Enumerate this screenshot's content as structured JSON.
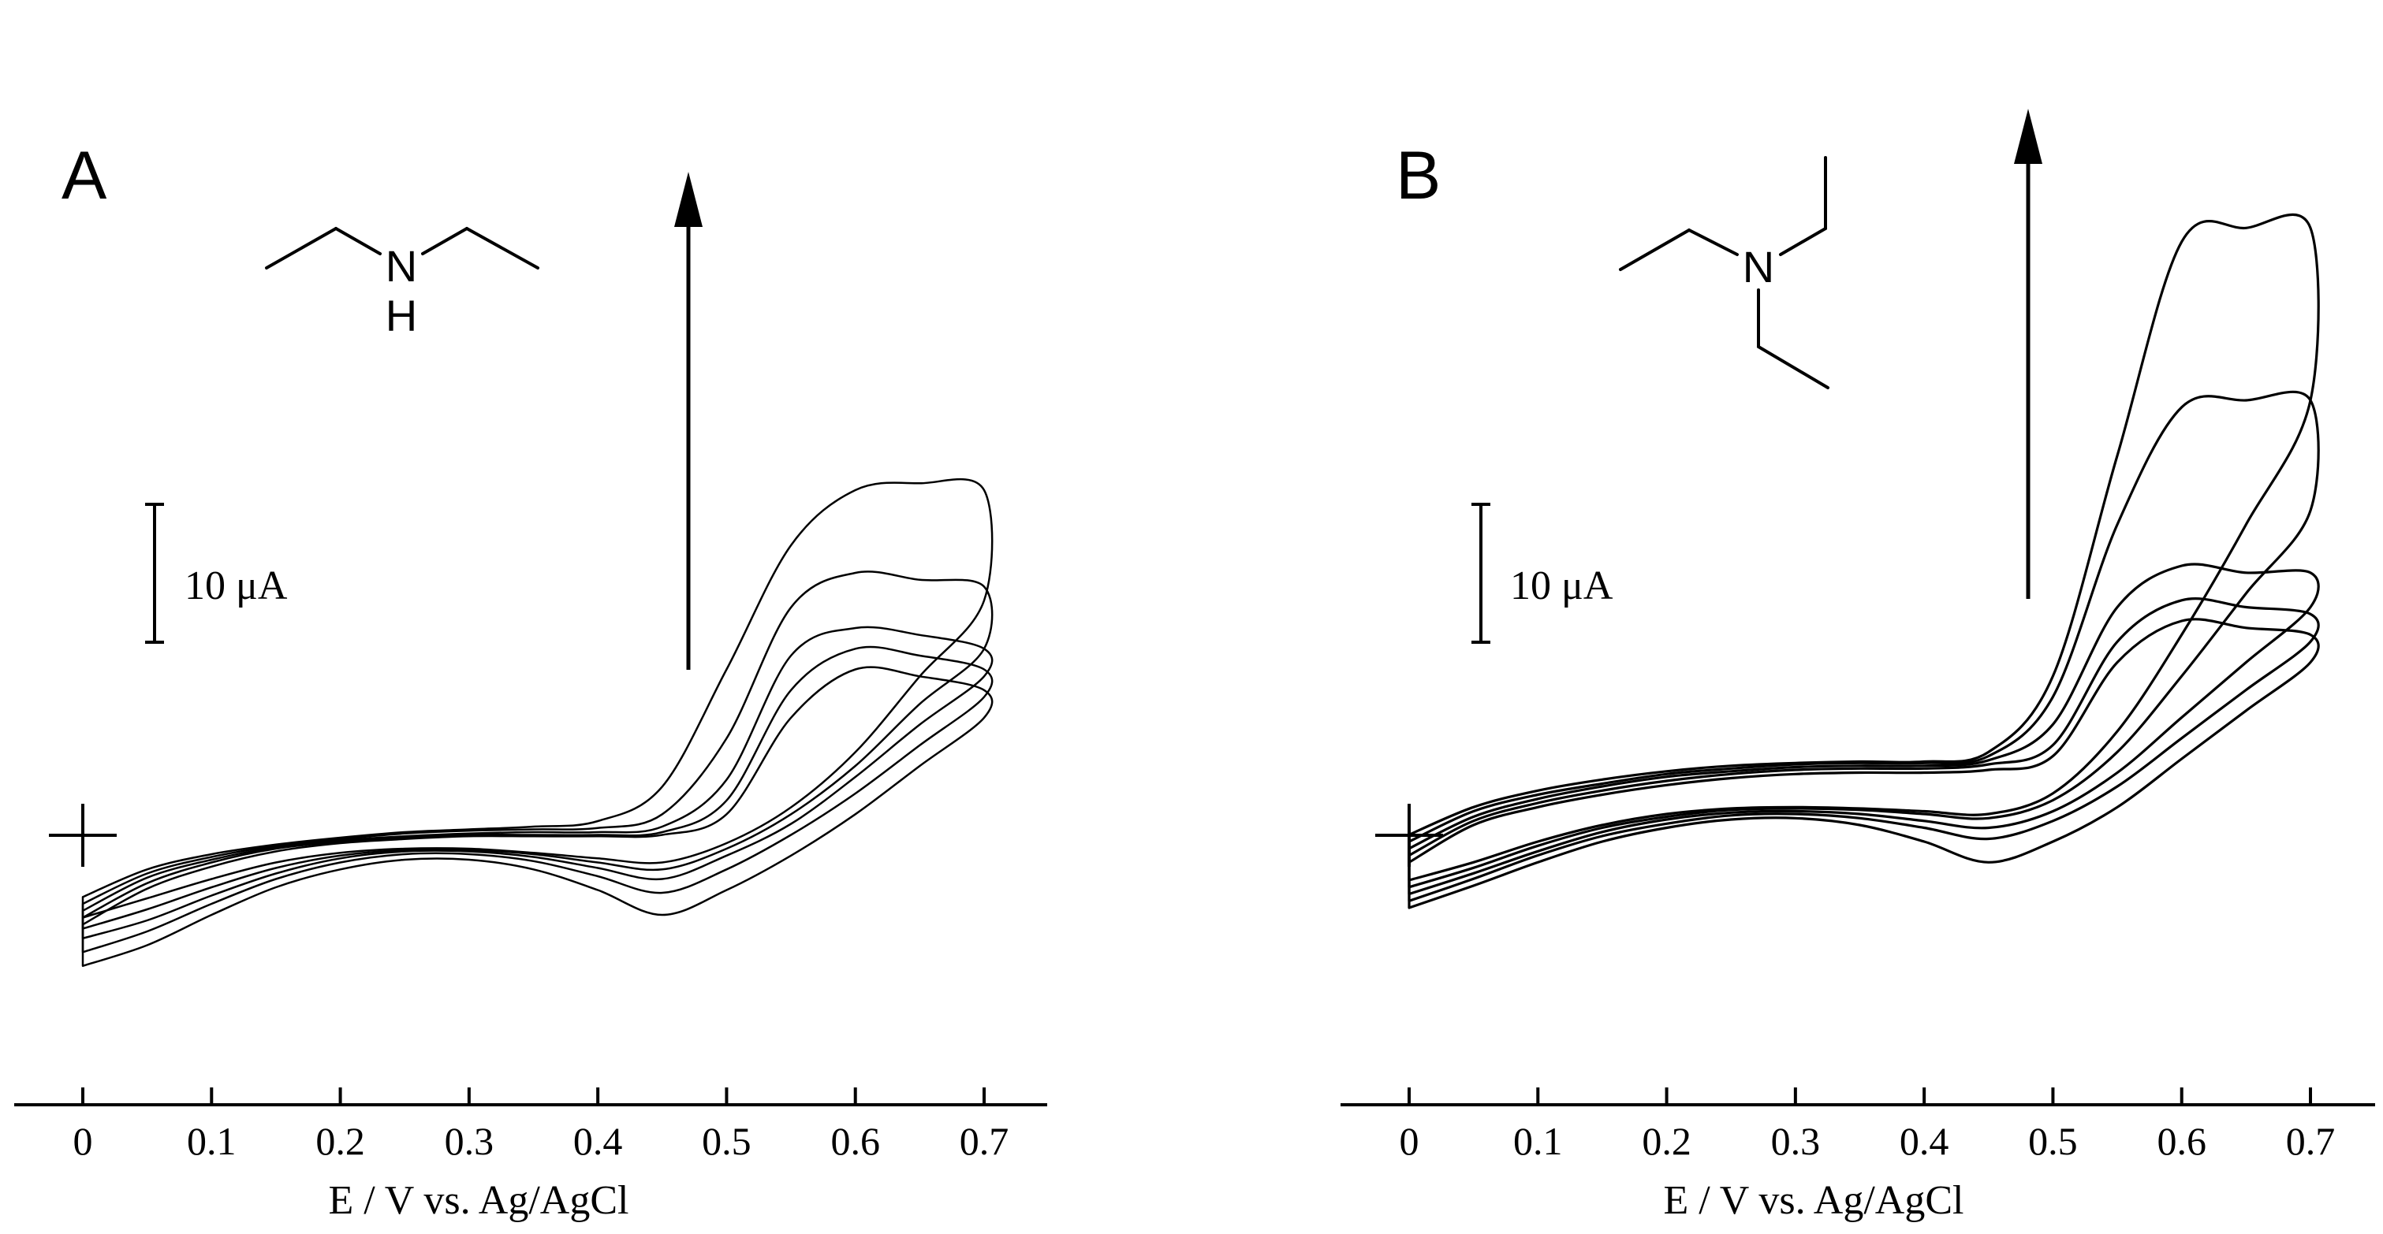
{
  "chart_data": [
    {
      "type": "line",
      "panel_label": "A",
      "molecule": {
        "atom_label": "N",
        "h_label": "H"
      },
      "xlabel": "E / V  vs.  Ag/AgCl",
      "xticks": [
        "0",
        "0.1",
        "0.2",
        "0.3",
        "0.4",
        "0.5",
        "0.6",
        "0.7"
      ],
      "xlim": [
        0,
        0.7
      ],
      "scale_bar_label": "10 μA",
      "scale_bar_uA": 10,
      "ylim_uA": [
        -8,
        40
      ],
      "grid": false,
      "legend": "none",
      "series": [
        {
          "upper_x": [
            0,
            0.05,
            0.1,
            0.15,
            0.2,
            0.25,
            0.3,
            0.35,
            0.4,
            0.45,
            0.5,
            0.55,
            0.6,
            0.65,
            0.7
          ],
          "upper_y": [
            -3.5,
            -1.5,
            -0.4,
            0.3,
            0.8,
            1.2,
            1.4,
            1.6,
            2.0,
            4.5,
            13.0,
            22.0,
            26.0,
            26.5,
            26.0
          ],
          "lower_x": [
            0.7,
            0.65,
            0.6,
            0.55,
            0.5,
            0.45,
            0.4,
            0.35,
            0.3,
            0.25,
            0.2,
            0.15,
            0.1,
            0.05,
            0
          ],
          "lower_y": [
            18.0,
            12.5,
            7.0,
            3.0,
            0.4,
            -1.0,
            -0.7,
            -0.3,
            0.0,
            0.0,
            -0.3,
            -1.0,
            -2.2,
            -3.6,
            -5.0
          ]
        },
        {
          "upper_x": [
            0,
            0.05,
            0.1,
            0.15,
            0.2,
            0.25,
            0.3,
            0.35,
            0.4,
            0.45,
            0.5,
            0.55,
            0.6,
            0.65,
            0.7
          ],
          "upper_y": [
            -4.0,
            -1.8,
            -0.6,
            0.2,
            0.7,
            1.1,
            1.3,
            1.4,
            1.5,
            2.5,
            8.0,
            17.5,
            20.0,
            19.5,
            19.0
          ],
          "lower_x": [
            0.7,
            0.65,
            0.6,
            0.55,
            0.5,
            0.45,
            0.4,
            0.35,
            0.3,
            0.25,
            0.2,
            0.15,
            0.1,
            0.05,
            0
          ],
          "lower_y": [
            14.5,
            10.5,
            6.0,
            2.5,
            0.0,
            -1.5,
            -1.0,
            -0.4,
            -0.1,
            -0.1,
            -0.5,
            -1.4,
            -2.8,
            -4.4,
            -5.8
          ]
        },
        {
          "upper_x": [
            0,
            0.05,
            0.1,
            0.15,
            0.2,
            0.25,
            0.3,
            0.35,
            0.4,
            0.45,
            0.5,
            0.55,
            0.6,
            0.65,
            0.7
          ],
          "upper_y": [
            -4.5,
            -2.1,
            -0.8,
            0.1,
            0.6,
            0.9,
            1.1,
            1.2,
            1.2,
            1.6,
            5.0,
            14.0,
            16.0,
            15.5,
            14.5
          ],
          "lower_x": [
            0.7,
            0.65,
            0.6,
            0.55,
            0.5,
            0.45,
            0.4,
            0.35,
            0.3,
            0.25,
            0.2,
            0.15,
            0.1,
            0.05,
            0
          ],
          "lower_y": [
            12.5,
            9.0,
            5.2,
            1.8,
            -0.5,
            -2.2,
            -1.4,
            -0.6,
            -0.2,
            -0.2,
            -0.7,
            -1.8,
            -3.4,
            -5.2,
            -6.5
          ]
        },
        {
          "upper_x": [
            0,
            0.05,
            0.1,
            0.15,
            0.2,
            0.25,
            0.3,
            0.35,
            0.4,
            0.45,
            0.5,
            0.55,
            0.6,
            0.65,
            0.7
          ],
          "upper_y": [
            -5.0,
            -2.5,
            -1.0,
            0.0,
            0.5,
            0.8,
            1.0,
            1.0,
            1.0,
            1.2,
            3.5,
            11.5,
            14.5,
            14.0,
            13.0
          ],
          "lower_x": [
            0.7,
            0.65,
            0.6,
            0.55,
            0.5,
            0.45,
            0.4,
            0.35,
            0.3,
            0.25,
            0.2,
            0.15,
            0.1,
            0.05,
            0
          ],
          "lower_y": [
            11.0,
            7.5,
            4.0,
            1.0,
            -1.5,
            -3.2,
            -2.0,
            -0.9,
            -0.4,
            -0.4,
            -1.0,
            -2.2,
            -4.0,
            -6.0,
            -7.5
          ]
        },
        {
          "upper_x": [
            0,
            0.05,
            0.1,
            0.15,
            0.2,
            0.25,
            0.3,
            0.35,
            0.4,
            0.45,
            0.5,
            0.55,
            0.6,
            0.65,
            0.7
          ],
          "upper_y": [
            -5.5,
            -2.9,
            -1.3,
            -0.2,
            0.4,
            0.7,
            0.9,
            0.9,
            0.9,
            1.0,
            2.5,
            9.5,
            13.0,
            12.5,
            11.5
          ],
          "lower_x": [
            0.7,
            0.65,
            0.6,
            0.55,
            0.5,
            0.45,
            0.4,
            0.35,
            0.3,
            0.25,
            0.2,
            0.15,
            0.1,
            0.05,
            0
          ],
          "lower_y": [
            9.5,
            6.0,
            2.5,
            -0.5,
            -3.0,
            -4.8,
            -3.0,
            -1.5,
            -0.8,
            -0.8,
            -1.5,
            -2.8,
            -4.8,
            -7.0,
            -8.5
          ]
        }
      ]
    },
    {
      "type": "line",
      "panel_label": "B",
      "molecule": {
        "atom_label": "N"
      },
      "xlabel": "E / V  vs.  Ag/AgCl",
      "xticks": [
        "0",
        "0.1",
        "0.2",
        "0.3",
        "0.4",
        "0.5",
        "0.6",
        "0.7"
      ],
      "xlim": [
        0,
        0.7
      ],
      "scale_bar_label": "10 μA",
      "scale_bar_uA": 10,
      "ylim_uA": [
        -8,
        50
      ],
      "grid": false,
      "legend": "none",
      "series": [
        {
          "upper_x": [
            0,
            0.05,
            0.1,
            0.15,
            0.2,
            0.25,
            0.3,
            0.35,
            0.4,
            0.45,
            0.5,
            0.55,
            0.6,
            0.65,
            0.7
          ],
          "upper_y": [
            -1.5,
            0.5,
            1.7,
            2.5,
            3.1,
            3.5,
            3.7,
            3.8,
            3.8,
            4.5,
            10.0,
            26.0,
            41.5,
            42.5,
            42.5
          ],
          "lower_x": [
            0.7,
            0.65,
            0.6,
            0.55,
            0.5,
            0.45,
            0.4,
            0.35,
            0.3,
            0.25,
            0.2,
            0.15,
            0.1,
            0.05,
            0
          ],
          "lower_y": [
            30.0,
            21.0,
            13.0,
            6.0,
            1.5,
            0.0,
            0.2,
            0.4,
            0.5,
            0.4,
            0.0,
            -0.8,
            -2.0,
            -3.5,
            -4.8
          ]
        },
        {
          "upper_x": [
            0,
            0.05,
            0.1,
            0.15,
            0.2,
            0.25,
            0.3,
            0.35,
            0.4,
            0.45,
            0.5,
            0.55,
            0.6,
            0.65,
            0.7
          ],
          "upper_y": [
            -2.0,
            0.2,
            1.4,
            2.2,
            2.9,
            3.3,
            3.6,
            3.7,
            3.7,
            4.2,
            8.5,
            21.0,
            29.5,
            30.0,
            30.0
          ],
          "lower_x": [
            0.7,
            0.65,
            0.6,
            0.55,
            0.5,
            0.45,
            0.4,
            0.35,
            0.3,
            0.25,
            0.2,
            0.15,
            0.1,
            0.05,
            0
          ],
          "lower_y": [
            22.0,
            16.0,
            10.0,
            4.5,
            1.0,
            -0.3,
            0.0,
            0.3,
            0.4,
            0.3,
            -0.2,
            -1.0,
            -2.3,
            -3.9,
            -5.3
          ]
        },
        {
          "upper_x": [
            0,
            0.05,
            0.1,
            0.15,
            0.2,
            0.25,
            0.3,
            0.35,
            0.4,
            0.45,
            0.5,
            0.55,
            0.6,
            0.65,
            0.7
          ],
          "upper_y": [
            -2.5,
            -0.2,
            1.1,
            2.0,
            2.7,
            3.1,
            3.4,
            3.5,
            3.5,
            3.9,
            6.5,
            15.0,
            18.0,
            17.5,
            17.5
          ],
          "lower_x": [
            0.7,
            0.65,
            0.6,
            0.55,
            0.5,
            0.45,
            0.4,
            0.35,
            0.3,
            0.25,
            0.2,
            0.15,
            0.1,
            0.05,
            0
          ],
          "lower_y": [
            15.0,
            11.0,
            7.0,
            3.0,
            0.2,
            -1.0,
            -0.5,
            0.0,
            0.2,
            0.1,
            -0.4,
            -1.3,
            -2.7,
            -4.3,
            -5.8
          ]
        },
        {
          "upper_x": [
            0,
            0.05,
            0.1,
            0.15,
            0.2,
            0.25,
            0.3,
            0.35,
            0.4,
            0.45,
            0.5,
            0.55,
            0.6,
            0.65,
            0.7
          ],
          "upper_y": [
            -3.0,
            -0.5,
            0.8,
            1.7,
            2.4,
            2.9,
            3.2,
            3.3,
            3.3,
            3.6,
            5.0,
            12.5,
            15.5,
            15.0,
            14.5
          ],
          "lower_x": [
            0.7,
            0.65,
            0.6,
            0.55,
            0.5,
            0.45,
            0.4,
            0.35,
            0.3,
            0.25,
            0.2,
            0.15,
            0.1,
            0.05,
            0
          ],
          "lower_y": [
            12.5,
            9.0,
            5.5,
            2.0,
            -0.5,
            -1.8,
            -1.0,
            -0.3,
            0.0,
            -0.1,
            -0.7,
            -1.6,
            -3.0,
            -4.7,
            -6.3
          ]
        },
        {
          "upper_x": [
            0,
            0.05,
            0.1,
            0.15,
            0.2,
            0.25,
            0.3,
            0.35,
            0.4,
            0.45,
            0.5,
            0.55,
            0.6,
            0.65,
            0.7
          ],
          "upper_y": [
            -3.5,
            -0.8,
            0.5,
            1.4,
            2.1,
            2.6,
            2.9,
            3.0,
            3.0,
            3.2,
            4.2,
            11.0,
            14.0,
            13.5,
            13.0
          ],
          "lower_x": [
            0.7,
            0.65,
            0.6,
            0.55,
            0.5,
            0.45,
            0.4,
            0.35,
            0.3,
            0.25,
            0.2,
            0.15,
            0.1,
            0.05,
            0
          ],
          "lower_y": [
            11.0,
            7.5,
            4.0,
            0.5,
            -2.0,
            -3.5,
            -2.0,
            -0.8,
            -0.3,
            -0.4,
            -1.0,
            -2.0,
            -3.5,
            -5.2,
            -6.8
          ]
        }
      ]
    }
  ]
}
